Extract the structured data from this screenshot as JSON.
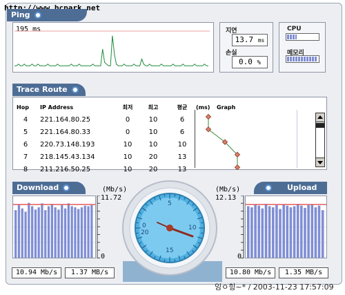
{
  "watermark": "http://www.bcpark.net",
  "ping": {
    "label": "Ping",
    "value": "195",
    "unit": "ms",
    "series": [
      2,
      2,
      3,
      2,
      2,
      3,
      2,
      2,
      2,
      3,
      2,
      2,
      3,
      2,
      2,
      2,
      2,
      3,
      2,
      2,
      2,
      2,
      3,
      2,
      2,
      2,
      2,
      2,
      2,
      3,
      2,
      2,
      2,
      3,
      2,
      2,
      2,
      2,
      2,
      2,
      3,
      2,
      2,
      2,
      2,
      12,
      4,
      3,
      2,
      2,
      20,
      9,
      3,
      2,
      2,
      2,
      3,
      2,
      2,
      2,
      2,
      3,
      2,
      2,
      2,
      6,
      3,
      2,
      2,
      3,
      2,
      2,
      2,
      2,
      2,
      3,
      2,
      2,
      2,
      2,
      2,
      3,
      2,
      2,
      2,
      2,
      3,
      2,
      2,
      2,
      2,
      2,
      3,
      2,
      2,
      2,
      2,
      3,
      2,
      2
    ]
  },
  "latency": {
    "label": "지연",
    "value": "13.7",
    "unit": "ms"
  },
  "loss": {
    "label": "손실",
    "value": "0.0",
    "unit": "%"
  },
  "cpu": {
    "label": "CPU",
    "level": 0.3
  },
  "memory": {
    "label": "메모리",
    "level": 0.95
  },
  "trace": {
    "label": "Trace Route",
    "headers": {
      "hop": "Hop",
      "ip": "IP Address",
      "min": "최저",
      "max": "최고",
      "avg": "평균",
      "ms": "(ms)",
      "graph": "Graph"
    },
    "rows": [
      {
        "hop": "4",
        "ip": "221.164.80.25",
        "min": "0",
        "max": "10",
        "avg": "6"
      },
      {
        "hop": "5",
        "ip": "221.164.80.33",
        "min": "0",
        "max": "10",
        "avg": "6"
      },
      {
        "hop": "6",
        "ip": "220.73.148.193",
        "min": "10",
        "max": "10",
        "avg": "10"
      },
      {
        "hop": "7",
        "ip": "218.145.43.134",
        "min": "10",
        "max": "20",
        "avg": "13"
      },
      {
        "hop": "8",
        "ip": "211.216.50.25",
        "min": "10",
        "max": "20",
        "avg": "13"
      }
    ]
  },
  "download": {
    "label": "Download",
    "unit": "(Mb/s)",
    "max": "11.72",
    "zero": "0",
    "rate_mbps": "10.94 Mb/s",
    "rate_MBps": "1.37 MB/s",
    "bars": [
      0.85,
      0.95,
      0.88,
      0.82,
      0.98,
      0.92,
      0.86,
      0.9,
      0.97,
      0.85,
      0.92,
      0.96,
      0.9,
      0.86,
      0.94,
      0.88,
      0.97,
      0.92,
      0.9,
      0.87,
      0.9,
      0.93,
      0.92,
      0.94
    ]
  },
  "upload": {
    "label": "Upload",
    "unit": "(Mb/s)",
    "max": "12.13",
    "zero": "0",
    "rate_mbps": "10.80 Mb/s",
    "rate_MBps": "1.35 MB/s",
    "bars": [
      0.92,
      0.9,
      0.95,
      0.93,
      0.88,
      0.96,
      0.92,
      0.9,
      0.94,
      0.87,
      0.95,
      0.93,
      0.9,
      0.92,
      0.96,
      0.93,
      0.89,
      0.94,
      0.95,
      0.9,
      0.93,
      0.85
    ]
  },
  "gauge": {
    "ticks": [
      "0",
      "5",
      "10",
      "15",
      "20"
    ]
  },
  "footer": {
    "text": "잉ㅇ힝~* / 2003-11-23 17:57:09"
  },
  "colors": {
    "accent": "#4d6d95",
    "bar": "#7f8ed4",
    "line": "#e05a5a",
    "gauge": "#4fb0e0"
  }
}
